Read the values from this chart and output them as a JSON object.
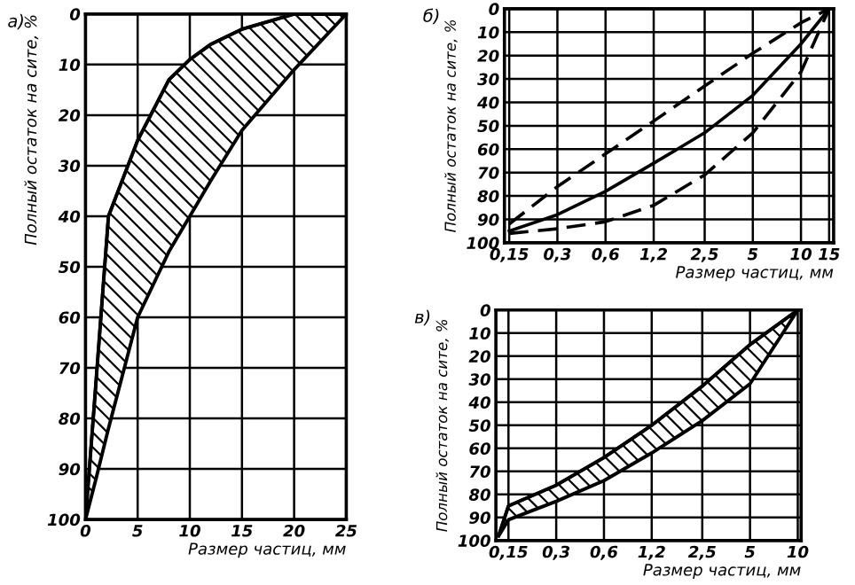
{
  "chart_data": [
    {
      "type": "area",
      "title": "а)",
      "xlabel": "Размер частиц, мм",
      "ylabel": "Полный остаток на сите, %",
      "x": [
        0,
        1,
        2.2,
        5,
        8,
        10,
        12,
        15,
        20,
        25
      ],
      "series": [
        {
          "type": "line",
          "color": "#000000",
          "values": [
            100,
            73,
            40,
            25,
            13,
            9,
            6,
            3,
            0,
            0
          ],
          "lower": [
            100,
            73,
            40,
            25,
            13,
            9,
            6,
            3,
            0,
            0
          ],
          "upper": [
            100,
            92,
            82,
            60,
            47,
            40,
            33,
            23,
            11,
            0
          ]
        }
      ],
      "xlim": [
        0,
        25
      ],
      "xticks": [
        0,
        5,
        10,
        15,
        20,
        25
      ],
      "ylim": [
        100,
        0
      ],
      "yticks": [
        0,
        10,
        20,
        30,
        40,
        50,
        60,
        70,
        80,
        90,
        100
      ],
      "grid": true,
      "log": false
    },
    {
      "type": "line",
      "title": "б)",
      "xlabel": "Размер частиц, мм",
      "ylabel": "Полный остаток на сите, %",
      "x": [
        0.15,
        0.3,
        0.6,
        1.2,
        2.5,
        5,
        10,
        15
      ],
      "series": [
        {
          "color": "#000000",
          "line_style": "dashed",
          "values": [
            92,
            76,
            62,
            48,
            33,
            19,
            6,
            0
          ]
        },
        {
          "color": "#000000",
          "line_style": "solid",
          "values": [
            95,
            88,
            78,
            66,
            53,
            37,
            15,
            0
          ]
        },
        {
          "color": "#000000",
          "line_style": "dashed",
          "values": [
            96,
            94,
            91,
            84,
            71,
            53,
            27,
            0
          ]
        }
      ],
      "xlim": [
        0.14,
        16
      ],
      "xticks": [
        {
          "value": 0.15,
          "label": "0,15"
        },
        {
          "value": 0.3,
          "label": "0,3"
        },
        {
          "value": 0.6,
          "label": "0,6"
        },
        {
          "value": 1.2,
          "label": "1,2"
        },
        {
          "value": 2.5,
          "label": "2,5"
        },
        5,
        10,
        15
      ],
      "ylim": [
        100,
        0
      ],
      "yticks": [
        0,
        10,
        20,
        30,
        40,
        50,
        60,
        70,
        80,
        90,
        100
      ],
      "grid": true,
      "log": "x"
    },
    {
      "type": "area",
      "title": "в)",
      "xlabel": "Размер частиц, мм",
      "ylabel": "Полный остаток на сите, %",
      "x": [
        0.13,
        0.15,
        0.3,
        0.6,
        1.2,
        2.5,
        5,
        10
      ],
      "series": [
        {
          "type": "line",
          "color": "#000000",
          "values": [
            98,
            85,
            76,
            64,
            50,
            33,
            15,
            0
          ],
          "lower": [
            98,
            85,
            76,
            64,
            50,
            33,
            15,
            0
          ],
          "upper": [
            98,
            91,
            83,
            74,
            62,
            48,
            32,
            0
          ]
        }
      ],
      "xlim": [
        0.125,
        10.5
      ],
      "xticks": [
        {
          "value": 0.15,
          "label": "0,15"
        },
        {
          "value": 0.3,
          "label": "0,3"
        },
        {
          "value": 0.6,
          "label": "0,6"
        },
        {
          "value": 1.2,
          "label": "1,2"
        },
        {
          "value": 2.5,
          "label": "2,5"
        },
        5,
        10
      ],
      "ylim": [
        100,
        0
      ],
      "yticks": [
        0,
        10,
        20,
        30,
        40,
        50,
        60,
        70,
        80,
        90,
        100
      ],
      "grid": true,
      "log": "x"
    }
  ]
}
